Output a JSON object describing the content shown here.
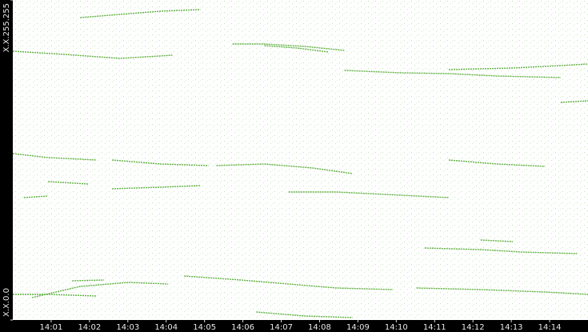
{
  "chart_data": {
    "type": "line",
    "color": "#5fb040",
    "xlim": [
      840,
      855
    ],
    "ylim": [
      0,
      65535
    ],
    "xticks": [
      {
        "value": 841,
        "label": "14:01"
      },
      {
        "value": 842,
        "label": "14:02"
      },
      {
        "value": 843,
        "label": "14:03"
      },
      {
        "value": 844,
        "label": "14:04"
      },
      {
        "value": 845,
        "label": "14:05"
      },
      {
        "value": 846,
        "label": "14:06"
      },
      {
        "value": 847,
        "label": "14:07"
      },
      {
        "value": 848,
        "label": "14:08"
      },
      {
        "value": 849,
        "label": "14:09"
      },
      {
        "value": 850,
        "label": "14:10"
      },
      {
        "value": 851,
        "label": "14:11"
      },
      {
        "value": 852,
        "label": "14:12"
      },
      {
        "value": 853,
        "label": "14:13"
      },
      {
        "value": 854,
        "label": "14:14"
      }
    ],
    "yticks": [
      {
        "value": 0,
        "label": "X.X.0.0"
      },
      {
        "value": 65535,
        "label": "X.X.255.255"
      }
    ],
    "series": [
      {
        "x": [
          840.0,
          841.34,
          842.8,
          844.16
        ],
        "values": [
          55050,
          54395,
          53576,
          54231
        ]
      },
      {
        "x": [
          845.73,
          846.56,
          847.61,
          848.65
        ],
        "values": [
          56525,
          56525,
          56033,
          55214
        ]
      },
      {
        "x": [
          846.56,
          847.4,
          848.23
        ],
        "values": [
          56197,
          55706,
          54886
        ]
      },
      {
        "x": [
          841.76,
          842.8,
          843.85,
          844.89
        ],
        "values": [
          61932,
          62587,
          63242,
          63570
        ]
      },
      {
        "x": [
          848.65,
          850.11,
          851.37,
          852.62,
          854.29
        ],
        "values": [
          51118,
          50627,
          50463,
          49971,
          49644
        ]
      },
      {
        "x": [
          851.37,
          853.04,
          854.29,
          855.0
        ],
        "values": [
          51282,
          51610,
          52101,
          52429
        ]
      },
      {
        "x": [
          854.29,
          855.0
        ],
        "values": [
          44564,
          44892
        ]
      },
      {
        "x": [
          840.0,
          840.92,
          842.17
        ],
        "values": [
          34079,
          33260,
          32768
        ]
      },
      {
        "x": [
          842.59,
          843.85,
          845.1
        ],
        "values": [
          32768,
          31949,
          31621
        ]
      },
      {
        "x": [
          845.31,
          846.56,
          847.82,
          848.86
        ],
        "values": [
          31621,
          31949,
          31130,
          29983
        ]
      },
      {
        "x": [
          840.29,
          840.92
        ],
        "values": [
          25068,
          25395
        ]
      },
      {
        "x": [
          840.92,
          841.96
        ],
        "values": [
          28344,
          27853
        ]
      },
      {
        "x": [
          842.59,
          843.85,
          844.89
        ],
        "values": [
          26870,
          27197,
          27525
        ]
      },
      {
        "x": [
          847.19,
          848.44,
          849.7,
          851.37
        ],
        "values": [
          26214,
          26214,
          25723,
          25068
        ]
      },
      {
        "x": [
          851.37,
          852.62,
          853.88
        ],
        "values": [
          32768,
          31949,
          31457
        ]
      },
      {
        "x": [
          850.74,
          852.2,
          853.25,
          854.71
        ],
        "values": [
          14746,
          14418,
          13926,
          13599
        ]
      },
      {
        "x": [
          840.0,
          840.92,
          842.17
        ],
        "values": [
          5243,
          5243,
          4915
        ]
      },
      {
        "x": [
          840.5,
          841.76,
          843.01,
          844.05
        ],
        "values": [
          4588,
          6881,
          7700,
          7373
        ]
      },
      {
        "x": [
          841.55,
          842.38
        ],
        "values": [
          8028,
          8192
        ]
      },
      {
        "x": [
          844.47,
          845.94,
          847.19,
          848.44,
          849.91
        ],
        "values": [
          9011,
          8192,
          7373,
          6554,
          6226
        ]
      },
      {
        "x": [
          846.35,
          847.61,
          848.86
        ],
        "values": [
          1638,
          819,
          492
        ]
      },
      {
        "x": [
          850.53,
          852.2,
          853.88,
          855.0
        ],
        "values": [
          6554,
          6226,
          5734,
          5243
        ]
      },
      {
        "x": [
          852.2,
          853.04
        ],
        "values": [
          16384,
          16056
        ]
      }
    ]
  }
}
